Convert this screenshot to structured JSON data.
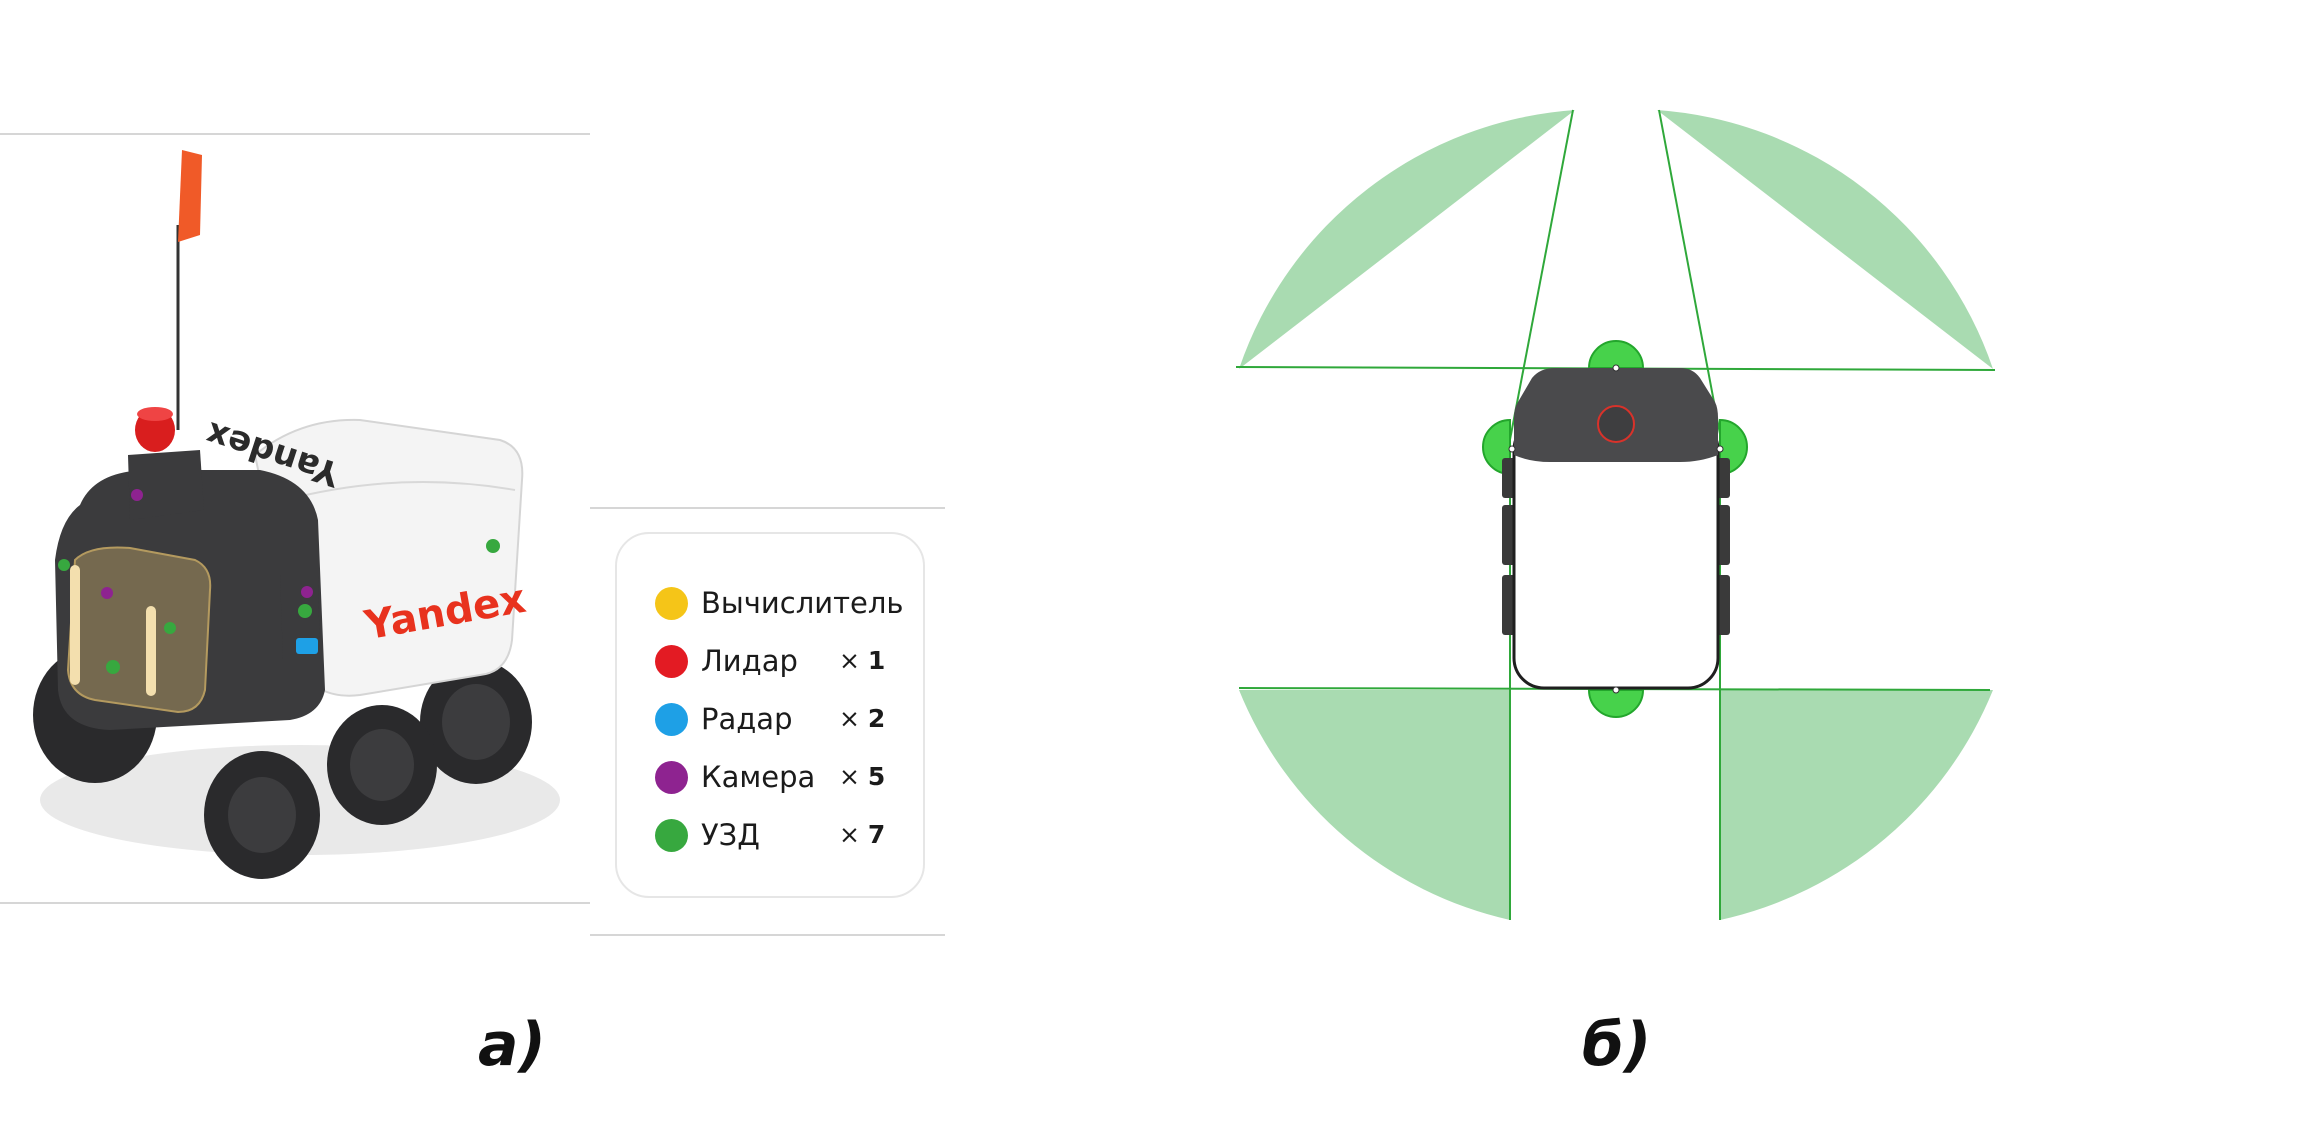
{
  "panels": {
    "a": {
      "label": "а)",
      "robot": {
        "brand_text_side": "Yandex",
        "brand_text_top": "Yandex",
        "colors": {
          "body": "#3b3b3d",
          "cargo": "#f4f4f4",
          "flag": "#f05a28",
          "brand_red": "#e8321e",
          "wheel": "#2a2a2c"
        }
      },
      "legend": {
        "items": [
          {
            "name": "Вычислитель",
            "count_prefix": "",
            "count": "",
            "color": "#f5c518"
          },
          {
            "name": "Лидар",
            "count_prefix": "×",
            "count": "1",
            "color": "#e31b23"
          },
          {
            "name": "Радар",
            "count_prefix": "×",
            "count": "2",
            "color": "#1ea0e6"
          },
          {
            "name": "Камера",
            "count_prefix": "×",
            "count": "5",
            "color": "#8e2390"
          },
          {
            "name": "УЗД",
            "count_prefix": "×",
            "count": "7",
            "color": "#37a83f"
          }
        ]
      }
    },
    "b": {
      "label": "б)",
      "colors": {
        "zone_fill": "#a9dbb1",
        "zone_stroke": "#2fa83a",
        "sensor_fill": "#47d24b",
        "sensor_stroke": "#23a62c",
        "robot_head": "#4a4a4c",
        "robot_outline": "#1f1f1f",
        "lidar_stroke": "#d9322a"
      }
    }
  }
}
